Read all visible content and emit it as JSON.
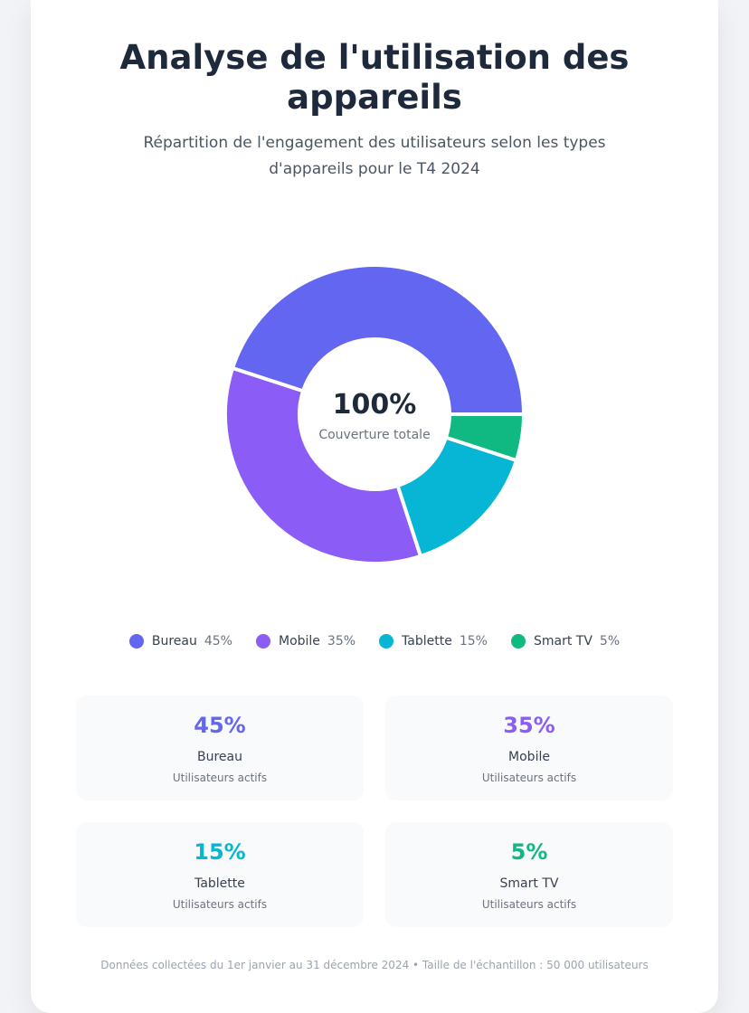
{
  "header": {
    "title": "Analyse de l'utilisation des appareils",
    "subtitle": "Répartition de l'engagement des utilisateurs selon les types d'appareils pour le T4 2024"
  },
  "center": {
    "value": "100%",
    "label": "Couverture totale"
  },
  "legend": [
    {
      "name": "Bureau",
      "pct": "45%",
      "color": "#6366f1"
    },
    {
      "name": "Mobile",
      "pct": "35%",
      "color": "#8b5cf6"
    },
    {
      "name": "Tablette",
      "pct": "15%",
      "color": "#06b6d4"
    },
    {
      "name": "Smart TV",
      "pct": "5%",
      "color": "#10b981"
    }
  ],
  "stats": [
    {
      "value": "45%",
      "name": "Bureau",
      "caption": "Utilisateurs actifs",
      "color": "#6366f1"
    },
    {
      "value": "35%",
      "name": "Mobile",
      "caption": "Utilisateurs actifs",
      "color": "#8b5cf6"
    },
    {
      "value": "15%",
      "name": "Tablette",
      "caption": "Utilisateurs actifs",
      "color": "#06b6d4"
    },
    {
      "value": "5%",
      "name": "Smart TV",
      "caption": "Utilisateurs actifs",
      "color": "#10b981"
    }
  ],
  "footer": "Données collectées du 1er janvier au 31 décembre 2024 • Taille de l'échantillon : 50 000 utilisateurs",
  "chart_data": {
    "type": "pie",
    "variant": "donut",
    "title": "Analyse de l'utilisation des appareils",
    "subtitle": "Répartition de l'engagement des utilisateurs selon les types d'appareils pour le T4 2024",
    "categories": [
      "Bureau",
      "Mobile",
      "Tablette",
      "Smart TV"
    ],
    "values": [
      45,
      35,
      15,
      5
    ],
    "colors": [
      "#6366f1",
      "#8b5cf6",
      "#06b6d4",
      "#10b981"
    ],
    "center_text": "100%",
    "center_label": "Couverture totale",
    "legend_position": "bottom"
  }
}
